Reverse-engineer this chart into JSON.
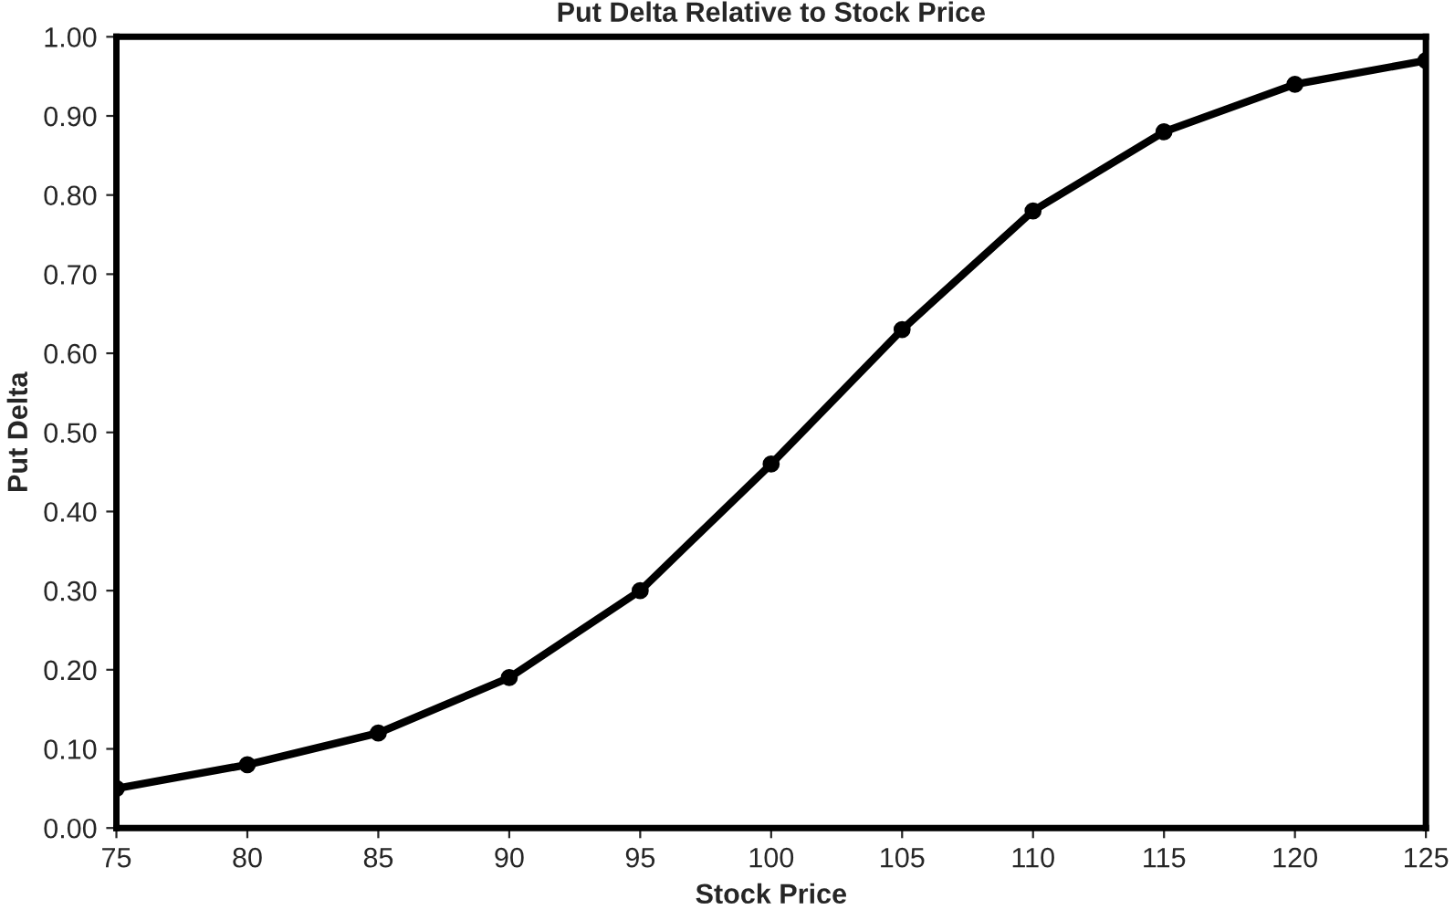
{
  "chart_data": {
    "type": "line",
    "title": "Put Delta Relative to Stock Price",
    "xlabel": "Stock Price",
    "ylabel": "Put Delta",
    "x": [
      75,
      80,
      85,
      90,
      95,
      100,
      105,
      110,
      115,
      120,
      125
    ],
    "series": [
      {
        "color": "#000000",
        "values": [
          0.05,
          0.08,
          0.12,
          0.19,
          0.3,
          0.46,
          0.63,
          0.78,
          0.88,
          0.94,
          0.97
        ]
      }
    ],
    "xlim": [
      75,
      125
    ],
    "xticks": [
      75,
      80,
      85,
      90,
      95,
      100,
      105,
      110,
      115,
      120,
      125
    ],
    "ylim": [
      0,
      1
    ],
    "yticks": [
      {
        "value": 0,
        "label": "0.00"
      },
      {
        "value": 0.1,
        "label": "0.10"
      },
      {
        "value": 0.2,
        "label": "0.20"
      },
      {
        "value": 0.3,
        "label": "0.30"
      },
      {
        "value": 0.4,
        "label": "0.40"
      },
      {
        "value": 0.5,
        "label": "0.50"
      },
      {
        "value": 0.6,
        "label": "0.60"
      },
      {
        "value": 0.7,
        "label": "0.70"
      },
      {
        "value": 0.8,
        "label": "0.80"
      },
      {
        "value": 0.9,
        "label": "0.90"
      },
      {
        "value": 1,
        "label": "1.00"
      }
    ],
    "grid": false,
    "legend": false,
    "marker": "circle",
    "line_style": "solid"
  }
}
